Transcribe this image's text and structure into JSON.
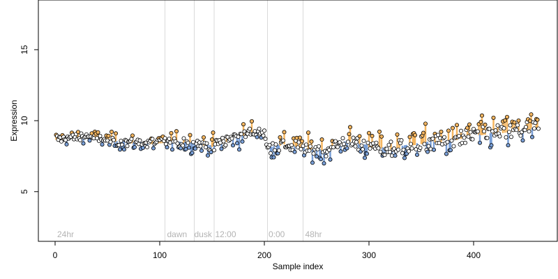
{
  "chart_data": {
    "type": "scatter",
    "title": "",
    "xlabel": "Sample index",
    "ylabel": "Expression",
    "xlim": [
      -16,
      480
    ],
    "ylim": [
      1.5,
      18.5
    ],
    "x_ticks": [
      0,
      100,
      200,
      300,
      400
    ],
    "x_tick_labels": [
      "0",
      "100",
      "200",
      "300",
      "400"
    ],
    "y_ticks": [
      5,
      10,
      15
    ],
    "y_tick_labels": [
      "5",
      "10",
      "15"
    ],
    "grid": false,
    "legend": "none",
    "n_points": 462,
    "colors": {
      "high": "#f5b660",
      "low": "#7aa0d8",
      "neutral": "#ffffff",
      "outline": "#000000",
      "guide": "#d9d9d9",
      "annotation": "#b3b3b3"
    },
    "vertical_lines": [
      105,
      133,
      152,
      203,
      237
    ],
    "annotations": [
      {
        "label": "24hr",
        "x": 2,
        "y": 2.0
      },
      {
        "label": "dawn",
        "x": 107,
        "y": 2.0
      },
      {
        "label": "dusk",
        "x": 133,
        "y": 2.0
      },
      {
        "label": "12:00",
        "x": 153,
        "y": 2.0
      },
      {
        "label": "0:00",
        "x": 204,
        "y": 2.0
      },
      {
        "label": "48hr",
        "x": 239,
        "y": 2.0
      }
    ],
    "trend": [
      {
        "x": 0,
        "y": 8.7
      },
      {
        "x": 30,
        "y": 8.9
      },
      {
        "x": 60,
        "y": 8.5
      },
      {
        "x": 90,
        "y": 8.4
      },
      {
        "x": 110,
        "y": 8.5
      },
      {
        "x": 135,
        "y": 8.4
      },
      {
        "x": 150,
        "y": 8.2
      },
      {
        "x": 170,
        "y": 8.7
      },
      {
        "x": 190,
        "y": 9.3
      },
      {
        "x": 200,
        "y": 9.2
      },
      {
        "x": 202,
        "y": 8.0
      },
      {
        "x": 220,
        "y": 8.4
      },
      {
        "x": 240,
        "y": 8.0
      },
      {
        "x": 260,
        "y": 7.9
      },
      {
        "x": 280,
        "y": 8.6
      },
      {
        "x": 300,
        "y": 8.2
      },
      {
        "x": 320,
        "y": 8.0
      },
      {
        "x": 340,
        "y": 8.3
      },
      {
        "x": 360,
        "y": 8.5
      },
      {
        "x": 380,
        "y": 8.6
      },
      {
        "x": 400,
        "y": 9.0
      },
      {
        "x": 420,
        "y": 9.1
      },
      {
        "x": 440,
        "y": 9.3
      },
      {
        "x": 462,
        "y": 9.5
      }
    ],
    "amplitude": [
      {
        "x": 0,
        "a": 0.22
      },
      {
        "x": 100,
        "a": 0.3
      },
      {
        "x": 200,
        "a": 0.38
      },
      {
        "x": 260,
        "a": 0.45
      },
      {
        "x": 320,
        "a": 0.5
      },
      {
        "x": 380,
        "a": 0.55
      },
      {
        "x": 462,
        "a": 0.55
      }
    ]
  }
}
